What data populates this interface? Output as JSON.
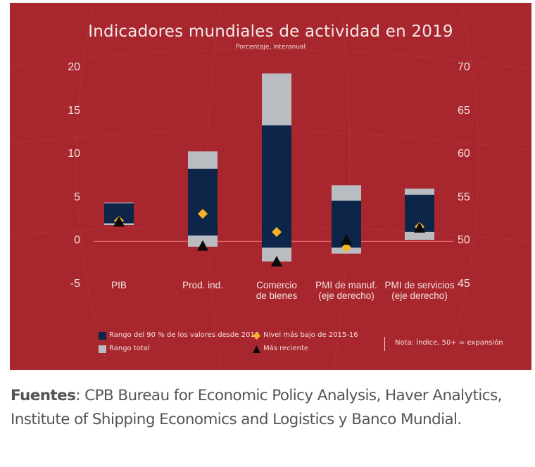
{
  "chart_data": {
    "type": "bar",
    "subtype": "floating-range",
    "title": "Indicadores mundiales de actividad en 2019",
    "subtitle": "Porcentaje, interanual",
    "left_axis": {
      "ylim": [
        -5,
        20
      ],
      "ticks": [
        "20",
        "15",
        "10",
        "5",
        "0",
        "-5"
      ],
      "tick_values": [
        20,
        15,
        10,
        5,
        0,
        -5
      ]
    },
    "right_axis": {
      "ylim": [
        45,
        70
      ],
      "ticks": [
        "70",
        "65",
        "60",
        "55",
        "50",
        "45"
      ],
      "tick_values": [
        70,
        65,
        60,
        55,
        50,
        45
      ]
    },
    "categories": [
      {
        "label_lines": [
          "PIB",
          ""
        ],
        "axis": "left",
        "total_range": [
          1.9,
          4.5
        ],
        "range_90": [
          2.1,
          4.4
        ],
        "lowest_2015_16": 2.4,
        "most_recent": 2.3
      },
      {
        "label_lines": [
          "Prod. ind.",
          ""
        ],
        "axis": "left",
        "total_range": [
          -0.6,
          10.4
        ],
        "range_90": [
          0.7,
          8.4
        ],
        "lowest_2015_16": 3.2,
        "most_recent": -0.5
      },
      {
        "label_lines": [
          "Comercio",
          "de bienes"
        ],
        "axis": "left",
        "total_range": [
          -2.3,
          19.4
        ],
        "range_90": [
          -0.7,
          13.4
        ],
        "lowest_2015_16": 1.1,
        "most_recent": -2.3
      },
      {
        "label_lines": [
          "PMI de manuf.",
          "(eje derecho)"
        ],
        "axis": "right",
        "total_range": [
          48.6,
          56.5
        ],
        "range_90": [
          49.3,
          54.7
        ],
        "lowest_2015_16": 49.3,
        "most_recent": 50.2
      },
      {
        "label_lines": [
          "PMI de servicios",
          "(eje derecho)"
        ],
        "axis": "right",
        "total_range": [
          50.2,
          56.1
        ],
        "range_90": [
          51.1,
          55.4
        ],
        "lowest_2015_16": 51.7,
        "most_recent": 51.6
      }
    ],
    "legend": {
      "range_90": "Rango del 90 % de los valores desde 2010",
      "total_range": "Rango total",
      "lowest": "Nivel más bajo de 2015-16",
      "recent": "Más reciente",
      "note": "Nota: Índice, 50+ = expansión",
      "placement": "bottom"
    },
    "colors": {
      "background": "#a8262d",
      "range_90": "#0d2549",
      "total_range": "#b9bcc0",
      "lowest": "#f5b427",
      "recent": "#0a0a0a",
      "zero_line": "#e06a70"
    }
  },
  "sources": {
    "label": "Fuentes",
    "text": ": CPB Bureau for Economic Policy Analysis, Haver Analytics, Institute of Shipping Economics and Logistics y Banco Mundial."
  }
}
